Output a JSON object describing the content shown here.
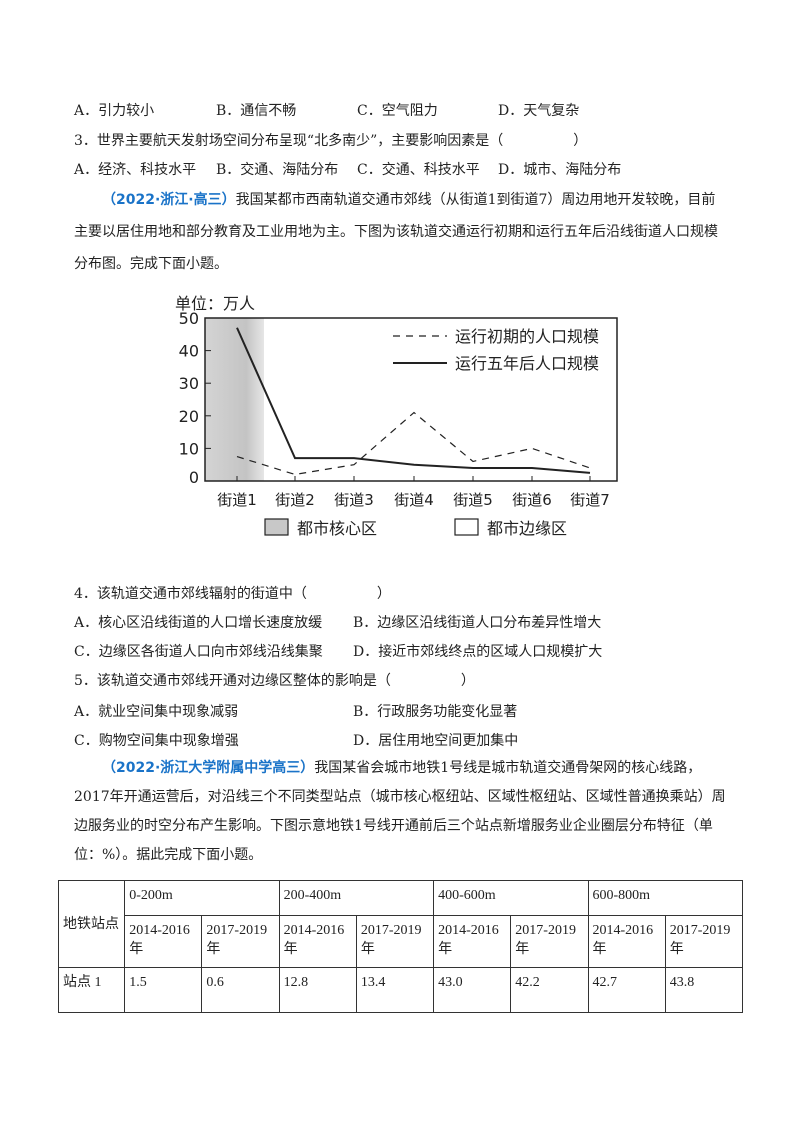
{
  "q2_options": [
    "A．引力较小",
    "B．通信不畅",
    "C．空气阻力",
    "D．天气复杂"
  ],
  "q3": {
    "stem": "3．世界主要航天发射场空间分布呈现“北多南少”，主要影响因素是（　　　　　）",
    "options": [
      "A．经济、科技水平",
      "B．交通、海陆分布",
      "C．交通、科技水平",
      "D．城市、海陆分布"
    ]
  },
  "passage1": {
    "source": "（2022·浙江·高三）",
    "text": "我国某都市西南轨道交通市郊线（从街道1到街道7）周边用地开发较晚，目前主要以居住用地和部分教育及工业用地为主。下图为该轨道交通运行初期和运行五年后沿线街道人口规模分布图。完成下面小题。"
  },
  "chart_data": {
    "type": "line",
    "unit_label": "单位：万人",
    "categories": [
      "街道1",
      "街道2",
      "街道3",
      "街道4",
      "街道5",
      "街道6",
      "街道7"
    ],
    "yticks": [
      0,
      10,
      20,
      30,
      40,
      50
    ],
    "ylim": [
      0,
      50
    ],
    "series": [
      {
        "name": "运行初期的人口规模",
        "style": "dashed",
        "values": [
          7.5,
          2,
          5,
          21,
          6,
          10,
          4
        ]
      },
      {
        "name": "运行五年后人口规模",
        "style": "solid",
        "values": [
          47,
          7,
          7,
          5,
          4,
          4,
          2.5
        ]
      }
    ],
    "legend_placement": "top-right",
    "regions": [
      {
        "name": "都市核心区",
        "categories": [
          "街道1"
        ],
        "color": "#c8c8c8"
      },
      {
        "name": "都市边缘区",
        "categories": [
          "街道2",
          "街道3",
          "街道4",
          "街道5",
          "街道6",
          "街道7"
        ],
        "color": "#ffffff"
      }
    ]
  },
  "q4": {
    "stem": "4．该轨道交通市郊线辐射的街道中（　　　　　）",
    "options": [
      "A．核心区沿线街道的人口增长速度放缓",
      "B．边缘区沿线街道人口分布差异性增大",
      "C．边缘区各街道人口向市郊线沿线集聚",
      "D．接近市郊线终点的区域人口规模扩大"
    ]
  },
  "q5": {
    "stem": "5．该轨道交通市郊线开通对边缘区整体的影响是（　　　　　）",
    "options": [
      "A．就业空间集中现象减弱",
      "B．行政服务功能变化显著",
      "C．购物空间集中现象增强",
      "D．居住用地空间更加集中"
    ]
  },
  "passage2": {
    "source": "（2022·浙江大学附属中学高三）",
    "text": "我国某省会城市地铁1号线是城市轨道交通骨架网的核心线路，2017年开通运营后，对沿线三个不同类型站点（城市核心枢纽站、区域性枢纽站、区域性普通换乘站）周边服务业的时空分布产生影响。下图示意地铁1号线开通前后三个站点新增服务业企业圈层分布特征（单位：%）。据此完成下面小题。"
  },
  "table": {
    "corner": "地铁站点",
    "rings": [
      "0-200m",
      "200-400m",
      "400-600m",
      "600-800m"
    ],
    "periods": [
      "2014-2016年",
      "2017-2019年",
      "2014-2016年",
      "2017-2019年",
      "2014-2016年",
      "2017-2019年",
      "2014-2016年",
      "2017-2019年"
    ],
    "rows": [
      {
        "station": "站点 1",
        "values": [
          "1.5",
          "0.6",
          "12.8",
          "13.4",
          "43.0",
          "42.2",
          "42.7",
          "43.8"
        ]
      }
    ]
  }
}
